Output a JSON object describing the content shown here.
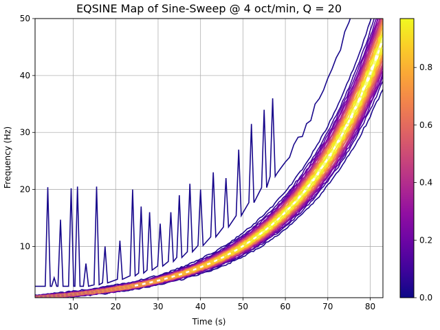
{
  "chart_data": {
    "type": "contour",
    "title": "EQSINE Map of Sine-Sweep @ 4 oct/min, Q = 20",
    "xlabel": "Time (s)",
    "ylabel": "Frequency (Hz)",
    "xlim": [
      1,
      83
    ],
    "ylim": [
      1,
      50
    ],
    "xticks": [
      10,
      20,
      30,
      40,
      50,
      60,
      70,
      80
    ],
    "yticks": [
      10,
      20,
      30,
      40,
      50
    ],
    "grid": true,
    "colormap": "plasma",
    "colorbar": {
      "range": [
        0,
        0.97
      ],
      "ticks": [
        "0.0",
        "0.2",
        "0.4",
        "0.6",
        "0.8"
      ],
      "tick_values": [
        0,
        0.2,
        0.4,
        0.6,
        0.8
      ]
    },
    "ridge": {
      "description": "peak response follows sweep frequency f = 1 * 2^(4 t / 60)",
      "start_hz": 1,
      "rate_oct_per_min": 4,
      "peak_value": 0.97
    },
    "outer_contour_spikes": {
      "times": [
        4.0,
        5.5,
        7.0,
        9.5,
        11.0,
        13.0,
        15.5,
        17.5,
        21.0,
        24.0,
        26.0,
        28.0,
        30.5,
        33.0,
        35.0,
        37.5,
        40.0,
        43.0,
        46.0,
        49.0,
        52.0,
        55.0,
        57.0
      ],
      "freqs": [
        20.4,
        4.5,
        14.7,
        20.2,
        20.5,
        7.0,
        20.5,
        10.0,
        11.0,
        20.0,
        17.0,
        16.0,
        14.0,
        16.0,
        19.0,
        21.0,
        20.0,
        23.0,
        22.0,
        27.0,
        31.5,
        34.0,
        36.0
      ]
    }
  }
}
